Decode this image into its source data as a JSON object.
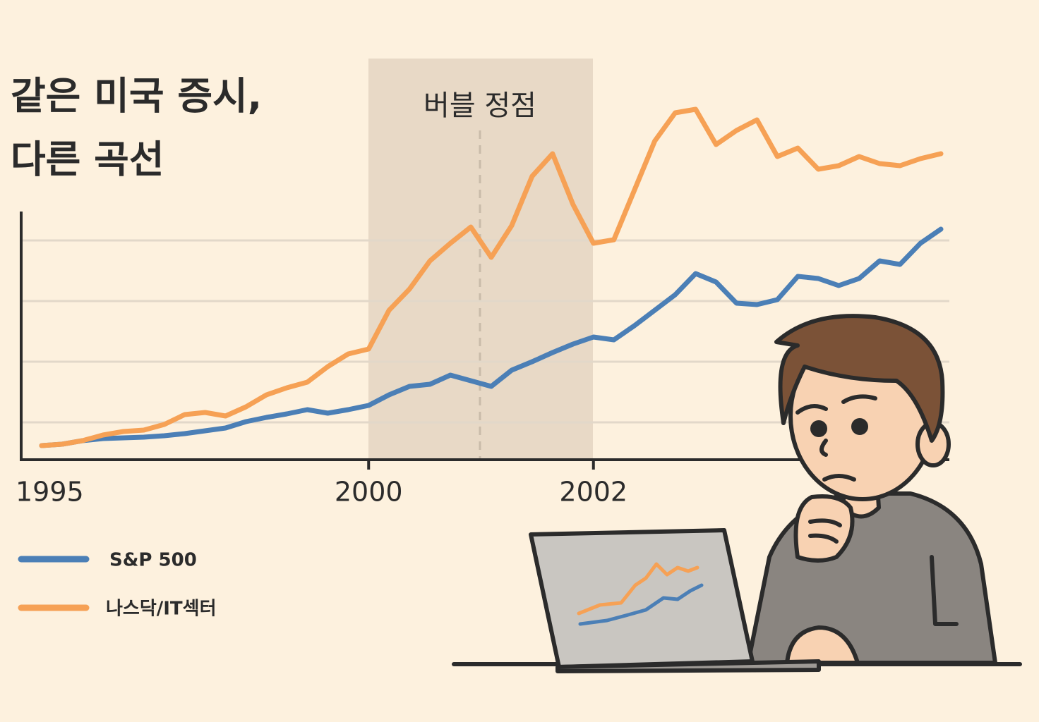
{
  "chart_data": {
    "type": "line",
    "title": [
      "같은 미국 증시,",
      "다른 곡선"
    ],
    "annotation": "버블 정점",
    "categories": [
      "1995",
      null,
      null,
      null,
      null,
      null,
      null,
      null,
      null,
      null,
      null,
      null,
      null,
      null,
      null,
      null,
      null,
      "2000",
      null,
      null,
      null,
      null,
      null,
      null,
      null,
      null,
      null,
      null,
      "2002",
      null,
      null,
      null,
      null,
      null,
      null,
      null,
      null,
      null,
      null,
      null,
      null,
      null,
      null,
      null,
      null,
      null
    ],
    "ylim": [
      0,
      552
    ],
    "series": [
      {
        "name": "S&P 500",
        "color": "#4b7fb6",
        "values": [
          null,
          20,
          22,
          27,
          30,
          31,
          32,
          34,
          37,
          41,
          45,
          54,
          60,
          65,
          71,
          66,
          71,
          77,
          92,
          104,
          107,
          120,
          112,
          104,
          127,
          139,
          152,
          164,
          174,
          170,
          190,
          212,
          234,
          264,
          252,
          222,
          220,
          227,
          260,
          257,
          247,
          257,
          282,
          277,
          307,
          327
        ]
      },
      {
        "name": "나스닥/IT섹터",
        "color": "#f6a155",
        "values": [
          null,
          20,
          22,
          27,
          35,
          40,
          42,
          50,
          64,
          67,
          62,
          75,
          92,
          102,
          110,
          132,
          150,
          157,
          212,
          242,
          282,
          307,
          330,
          287,
          332,
          402,
          434,
          362,
          307,
          312,
          382,
          452,
          492,
          497,
          447,
          467,
          482,
          430,
          442,
          412,
          417,
          430,
          420,
          417,
          427,
          434
        ]
      }
    ]
  }
}
